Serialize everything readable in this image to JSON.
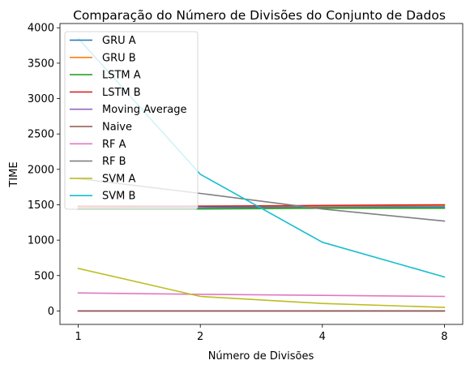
{
  "chart_data": {
    "type": "line",
    "title": "Comparação do Número de Divisões do Conjunto de Dados",
    "xlabel": "Número de Divisões",
    "ylabel": "TIME",
    "x": [
      1,
      2,
      4,
      8
    ],
    "x_tick_labels": [
      "1",
      "2",
      "4",
      "8"
    ],
    "y_ticks": [
      0,
      500,
      1000,
      1500,
      2000,
      2500,
      3000,
      3500,
      4000
    ],
    "ylim": [
      -190,
      4060
    ],
    "grid": false,
    "legend_position": "upper-left",
    "series": [
      {
        "name": "GRU A",
        "color": "#1f77b4",
        "values": [
          1460,
          1460,
          1470,
          1470
        ]
      },
      {
        "name": "GRU B",
        "color": "#ff7f0e",
        "values": [
          1470,
          1480,
          1480,
          1490
        ]
      },
      {
        "name": "LSTM A",
        "color": "#2ca02c",
        "values": [
          1440,
          1440,
          1450,
          1450
        ]
      },
      {
        "name": "LSTM B",
        "color": "#d62728",
        "values": [
          1480,
          1480,
          1490,
          1500
        ]
      },
      {
        "name": "Moving Average",
        "color": "#9467bd",
        "values": [
          0,
          0,
          0,
          0
        ]
      },
      {
        "name": "Naive",
        "color": "#8c564b",
        "values": [
          0,
          0,
          0,
          0
        ]
      },
      {
        "name": "RF A",
        "color": "#e377c2",
        "values": [
          255,
          235,
          220,
          205
        ]
      },
      {
        "name": "RF B",
        "color": "#7f7f7f",
        "values": [
          1870,
          1660,
          1440,
          1270
        ]
      },
      {
        "name": "SVM A",
        "color": "#bcbd22",
        "values": [
          600,
          205,
          105,
          50
        ]
      },
      {
        "name": "SVM B",
        "color": "#17becf",
        "values": [
          3850,
          1930,
          970,
          480
        ]
      }
    ]
  }
}
